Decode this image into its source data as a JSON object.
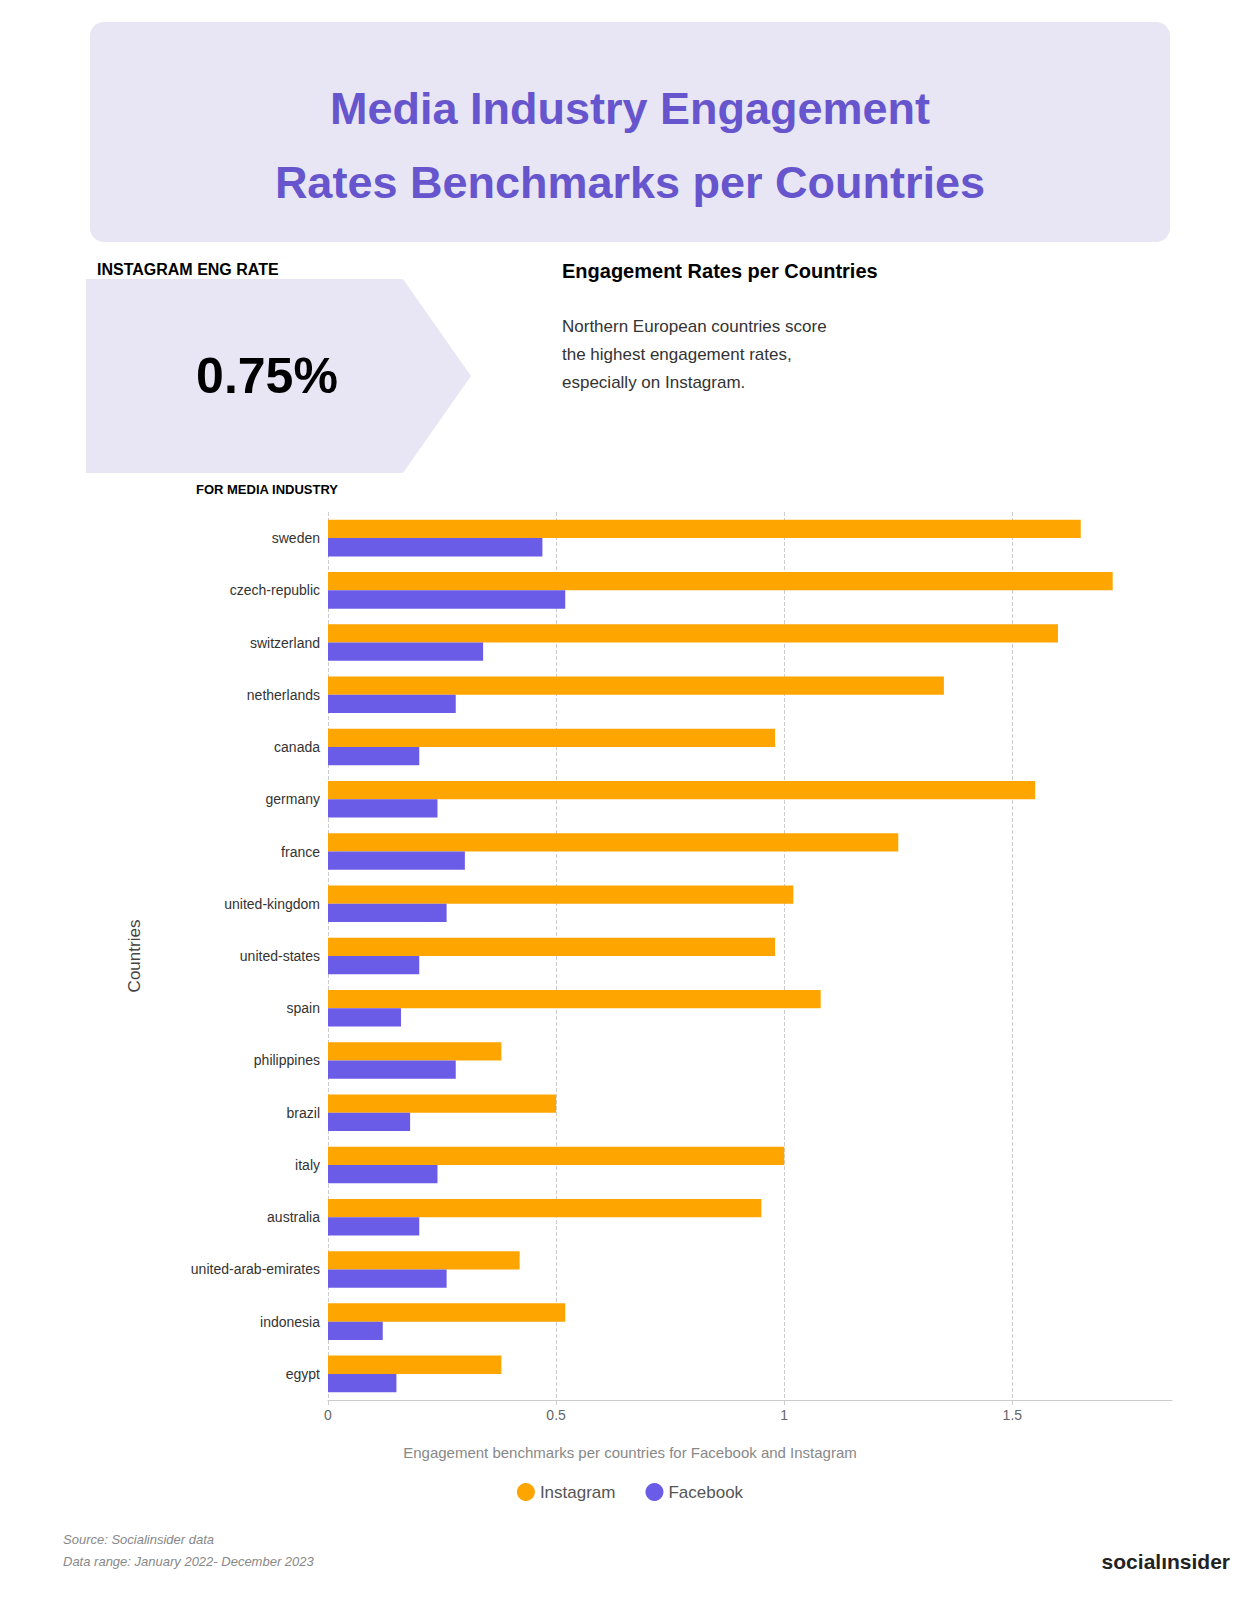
{
  "chart_data": {
    "type": "bar",
    "orientation": "horizontal",
    "title": "Media Industry Engagement\nRates Benchmarks per Countries",
    "subtitle": "Engagement Rates per Countries",
    "annotations": [
      "INSTAGRAM ENG RATE",
      "0.75%",
      "FOR MEDIA INDUSTRY",
      "Northern European countries score\nthe highest engagement rates,\nespecially on Instagram.",
      "Engagement benchmarks per countries for Facebook and Instagram",
      "Source: Socialinsider data\nData range: January 2022- December 2023",
      "socialınsider"
    ],
    "ylabel": "Countries",
    "categories": [
      "sweden",
      "czech-republic",
      "switzerland",
      "netherlands",
      "canada",
      "germany",
      "france",
      "united-kingdom",
      "united-states",
      "spain",
      "philippines",
      "brazil",
      "italy",
      "australia",
      "united-arab-emirates",
      "indonesia",
      "egypt"
    ],
    "series": [
      {
        "name": "Instagram",
        "color": "#FFA500",
        "values": [
          1.65,
          1.72,
          1.6,
          1.35,
          0.98,
          1.55,
          1.25,
          1.02,
          0.98,
          1.08,
          0.38,
          0.5,
          1.0,
          0.95,
          0.42,
          0.52,
          0.38
        ]
      },
      {
        "name": "Facebook",
        "color": "#6B5CE7",
        "values": [
          0.47,
          0.52,
          0.34,
          0.28,
          0.2,
          0.24,
          0.3,
          0.26,
          0.2,
          0.16,
          0.28,
          0.18,
          0.24,
          0.2,
          0.26,
          0.12,
          0.15
        ]
      }
    ],
    "xlim": [
      0,
      1.85
    ],
    "xticks": [
      0,
      0.5,
      1,
      1.5
    ],
    "grid": true,
    "legend": "bottom"
  }
}
